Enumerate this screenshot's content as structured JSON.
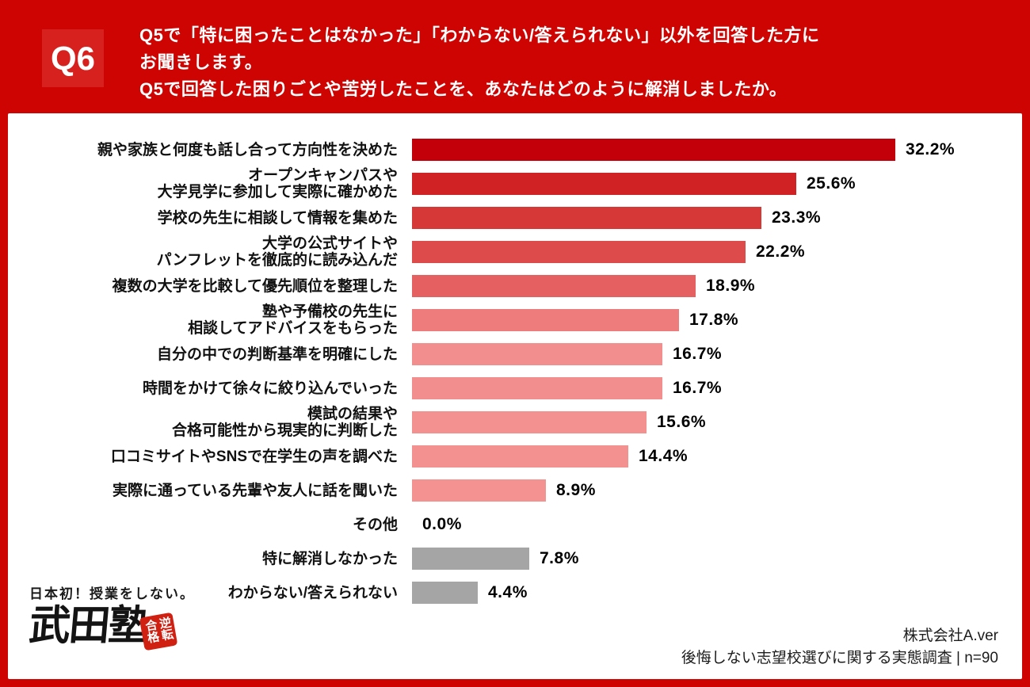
{
  "header": {
    "badge": "Q6",
    "title_lines": [
      "Q5で「特に困ったことはなかった」「わからない/答えられない」以外を回答した方に",
      "お聞きします。",
      "Q5で回答した困りごとや苦労したことを、あなたはどのように解消しましたか。"
    ]
  },
  "chart_data": {
    "type": "bar",
    "orientation": "horizontal",
    "title": "",
    "xlabel": "",
    "ylabel": "",
    "value_unit": "%",
    "xlim": [
      0,
      35
    ],
    "grid": false,
    "legend": false,
    "categories": [
      "親や家族と何度も話し合って方向性を決めた",
      "オープンキャンパスや大学見学に参加して実際に確かめた",
      "学校の先生に相談して情報を集めた",
      "大学の公式サイトやパンフレットを徹底的に読み込んだ",
      "複数の大学を比較して優先順位を整理した",
      "塾や予備校の先生に相談してアドバイスをもらった",
      "自分の中での判断基準を明確にした",
      "時間をかけて徐々に絞り込んでいった",
      "模試の結果や合格可能性から現実的に判断した",
      "口コミサイトやSNSで在学生の声を調べた",
      "実際に通っている先輩や友人に話を聞いた",
      "その他",
      "特に解消しなかった",
      "わからない/答えられない"
    ],
    "values": [
      32.2,
      25.6,
      23.3,
      22.2,
      18.9,
      17.8,
      16.7,
      16.7,
      15.6,
      14.4,
      8.9,
      0.0,
      7.8,
      4.4
    ],
    "rows": [
      {
        "label_lines": [
          "親や家族と何度も話し合って方向性を決めた"
        ],
        "value": 32.2,
        "display": "32.2%",
        "color": "#c3000a"
      },
      {
        "label_lines": [
          "オープンキャンパスや",
          "大学見学に参加して実際に確かめた"
        ],
        "value": 25.6,
        "display": "25.6%",
        "color": "#d02124"
      },
      {
        "label_lines": [
          "学校の先生に相談して情報を集めた"
        ],
        "value": 23.3,
        "display": "23.3%",
        "color": "#d63838"
      },
      {
        "label_lines": [
          "大学の公式サイトや",
          "パンフレットを徹底的に読み込んだ"
        ],
        "value": 22.2,
        "display": "22.2%",
        "color": "#de4b4b"
      },
      {
        "label_lines": [
          "複数の大学を比較して優先順位を整理した"
        ],
        "value": 18.9,
        "display": "18.9%",
        "color": "#e56060"
      },
      {
        "label_lines": [
          "塾や予備校の先生に",
          "相談してアドバイスをもらった"
        ],
        "value": 17.8,
        "display": "17.8%",
        "color": "#ee7c7c"
      },
      {
        "label_lines": [
          "自分の中での判断基準を明確にした"
        ],
        "value": 16.7,
        "display": "16.7%",
        "color": "#f28e8e"
      },
      {
        "label_lines": [
          "時間をかけて徐々に絞り込んでいった"
        ],
        "value": 16.7,
        "display": "16.7%",
        "color": "#f28e8e"
      },
      {
        "label_lines": [
          "模試の結果や",
          "合格可能性から現実的に判断した"
        ],
        "value": 15.6,
        "display": "15.6%",
        "color": "#f39090"
      },
      {
        "label_lines": [
          "口コミサイトやSNSで在学生の声を調べた"
        ],
        "value": 14.4,
        "display": "14.4%",
        "color": "#f39090"
      },
      {
        "label_lines": [
          "実際に通っている先輩や友人に話を聞いた"
        ],
        "value": 8.9,
        "display": "8.9%",
        "color": "#f49292"
      },
      {
        "label_lines": [
          "その他"
        ],
        "value": 0.0,
        "display": "0.0%",
        "color": null
      },
      {
        "label_lines": [
          "特に解消しなかった"
        ],
        "value": 7.8,
        "display": "7.8%",
        "color": "#a5a5a5"
      },
      {
        "label_lines": [
          "わからない/答えられない"
        ],
        "value": 4.4,
        "display": "4.4%",
        "color": "#a5a5a5"
      }
    ]
  },
  "logo": {
    "tagline": "日本初！授業をしない。",
    "brand": "武田塾",
    "seal": "逆転合格"
  },
  "footer": {
    "company": "株式会社A.ver",
    "survey": "後悔しない志望校選びに関する実態調査 | n=90"
  },
  "colors": {
    "background_red": "#cd0402",
    "badge_red": "#d6211e",
    "card_white": "#ffffff",
    "bar_gray": "#a5a5a5"
  }
}
